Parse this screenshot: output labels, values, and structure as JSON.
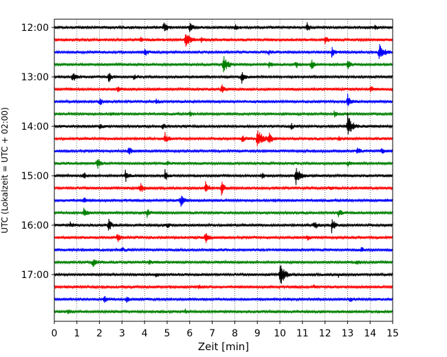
{
  "chart_data": {
    "type": "line",
    "title": "",
    "xlabel": "Zeit  [min]",
    "ylabel": "UTC (Lokalzeit = UTC + 02:00)",
    "xlim": [
      0,
      15
    ],
    "x_ticks": [
      0,
      1,
      2,
      3,
      4,
      5,
      6,
      7,
      8,
      9,
      10,
      11,
      12,
      13,
      14,
      15
    ],
    "y_tick_labels": [
      "12:00",
      "13:00",
      "14:00",
      "15:00",
      "16:00",
      "17:00"
    ],
    "trace_interval_min": 15,
    "grid_x": true,
    "colors": [
      "#000000",
      "#ff0000",
      "#0000ff",
      "#008000"
    ],
    "traces": [
      {
        "time": "12:00",
        "color": "#000000",
        "events": [
          [
            4.85,
            12
          ],
          [
            6.0,
            10
          ],
          [
            11.2,
            7
          ],
          [
            8.0,
            5
          ],
          [
            14.2,
            4
          ]
        ]
      },
      {
        "time": "12:15",
        "color": "#ff0000",
        "events": [
          [
            5.8,
            13
          ],
          [
            12.0,
            6
          ],
          [
            6.5,
            5
          ],
          [
            3.8,
            4
          ]
        ]
      },
      {
        "time": "12:30",
        "color": "#0000ff",
        "events": [
          [
            4.0,
            7
          ],
          [
            12.3,
            7
          ],
          [
            14.4,
            14
          ],
          [
            9.5,
            4
          ]
        ]
      },
      {
        "time": "12:45",
        "color": "#008000",
        "events": [
          [
            7.5,
            14
          ],
          [
            13.0,
            9
          ],
          [
            10.7,
            6
          ],
          [
            9.5,
            5
          ],
          [
            11.4,
            7
          ]
        ]
      },
      {
        "time": "13:00",
        "color": "#000000",
        "events": [
          [
            0.8,
            11
          ],
          [
            2.4,
            8
          ],
          [
            8.3,
            9
          ],
          [
            3.5,
            4
          ]
        ]
      },
      {
        "time": "13:15",
        "color": "#ff0000",
        "events": [
          [
            7.4,
            7
          ],
          [
            14.0,
            6
          ],
          [
            15.0,
            9
          ],
          [
            2.8,
            4
          ]
        ]
      },
      {
        "time": "13:30",
        "color": "#0000ff",
        "events": [
          [
            2.0,
            6
          ],
          [
            13.0,
            12
          ],
          [
            4.5,
            3
          ]
        ]
      },
      {
        "time": "13:45",
        "color": "#008000",
        "events": [
          [
            12.4,
            5
          ],
          [
            6.0,
            3
          ],
          [
            2.5,
            3
          ]
        ]
      },
      {
        "time": "14:00",
        "color": "#000000",
        "events": [
          [
            13.0,
            19
          ],
          [
            4.8,
            5
          ],
          [
            2.0,
            4
          ],
          [
            10.5,
            4
          ]
        ]
      },
      {
        "time": "14:15",
        "color": "#ff0000",
        "events": [
          [
            9.0,
            18
          ],
          [
            9.5,
            11
          ],
          [
            4.9,
            9
          ],
          [
            8.3,
            7
          ],
          [
            12.6,
            4
          ]
        ]
      },
      {
        "time": "14:30",
        "color": "#0000ff",
        "events": [
          [
            3.3,
            8
          ],
          [
            13.4,
            6
          ],
          [
            14.5,
            6
          ]
        ]
      },
      {
        "time": "14:45",
        "color": "#008000",
        "events": [
          [
            1.9,
            8
          ],
          [
            13.0,
            4
          ],
          [
            5.0,
            3
          ]
        ]
      },
      {
        "time": "15:00",
        "color": "#000000",
        "events": [
          [
            3.15,
            10
          ],
          [
            4.9,
            9
          ],
          [
            10.7,
            15
          ],
          [
            1.3,
            5
          ],
          [
            9.2,
            4
          ]
        ]
      },
      {
        "time": "15:15",
        "color": "#ff0000",
        "events": [
          [
            3.8,
            10
          ],
          [
            6.7,
            11
          ],
          [
            7.4,
            12
          ],
          [
            12.2,
            3
          ]
        ]
      },
      {
        "time": "15:30",
        "color": "#0000ff",
        "events": [
          [
            5.6,
            11
          ],
          [
            1.3,
            4
          ],
          [
            9.7,
            3
          ]
        ]
      },
      {
        "time": "15:45",
        "color": "#008000",
        "events": [
          [
            1.3,
            7
          ],
          [
            4.1,
            7
          ],
          [
            12.6,
            5
          ]
        ]
      },
      {
        "time": "16:00",
        "color": "#000000",
        "events": [
          [
            2.4,
            10
          ],
          [
            11.5,
            9
          ],
          [
            12.3,
            12
          ],
          [
            0.7,
            4
          ],
          [
            5.0,
            4
          ]
        ]
      },
      {
        "time": "16:15",
        "color": "#ff0000",
        "events": [
          [
            2.8,
            8
          ],
          [
            6.7,
            10
          ],
          [
            11.2,
            4
          ]
        ]
      },
      {
        "time": "16:30",
        "color": "#0000ff",
        "events": [
          [
            13.6,
            4
          ],
          [
            3.0,
            3
          ]
        ]
      },
      {
        "time": "16:45",
        "color": "#008000",
        "events": [
          [
            1.7,
            8
          ],
          [
            13.4,
            4
          ],
          [
            4.2,
            3
          ]
        ]
      },
      {
        "time": "17:00",
        "color": "#000000",
        "events": [
          [
            10.0,
            19
          ],
          [
            4.5,
            3
          ],
          [
            12.6,
            3
          ]
        ]
      },
      {
        "time": "17:15",
        "color": "#ff0000",
        "events": [
          [
            6.4,
            3
          ],
          [
            11.5,
            3
          ]
        ]
      },
      {
        "time": "17:30",
        "color": "#0000ff",
        "events": [
          [
            2.2,
            5
          ],
          [
            3.2,
            4
          ],
          [
            13.1,
            3
          ]
        ]
      },
      {
        "time": "17:45",
        "color": "#008000",
        "events": [
          [
            0.6,
            3
          ],
          [
            5.8,
            3
          ]
        ]
      }
    ]
  }
}
